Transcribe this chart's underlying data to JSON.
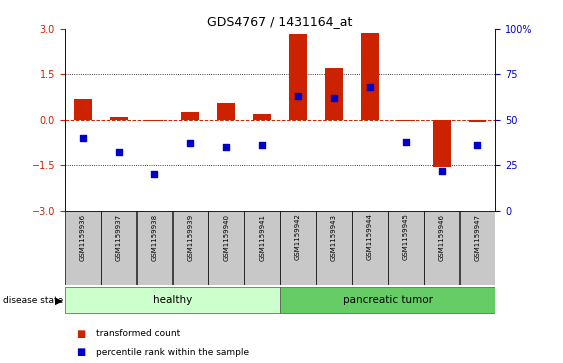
{
  "title": "GDS4767 / 1431164_at",
  "samples": [
    "GSM1159936",
    "GSM1159937",
    "GSM1159938",
    "GSM1159939",
    "GSM1159940",
    "GSM1159941",
    "GSM1159942",
    "GSM1159943",
    "GSM1159944",
    "GSM1159945",
    "GSM1159946",
    "GSM1159947"
  ],
  "transformed_count": [
    0.7,
    0.08,
    -0.05,
    0.25,
    0.55,
    0.2,
    2.85,
    1.7,
    2.87,
    -0.05,
    -1.55,
    -0.07
  ],
  "percentile_rank": [
    40,
    32,
    20,
    37,
    35,
    36,
    63,
    62,
    68,
    38,
    22,
    36
  ],
  "healthy_color": "#ccffcc",
  "tumor_color": "#66cc66",
  "bar_color": "#cc2200",
  "dot_color": "#0000cc",
  "ylim_left": [
    -3,
    3
  ],
  "ylim_right": [
    0,
    100
  ],
  "yticks_left": [
    -3,
    -1.5,
    0,
    1.5,
    3
  ],
  "yticks_right": [
    0,
    25,
    50,
    75,
    100
  ],
  "bg_color": "#ffffff",
  "sample_box_color": "#c8c8c8",
  "bar_width": 0.5
}
